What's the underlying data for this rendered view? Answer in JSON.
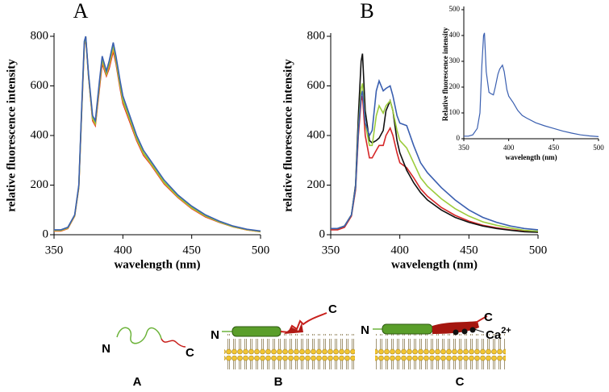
{
  "chart_data": [
    {
      "type": "line",
      "title": "A",
      "xlabel": "wavelength (nm)",
      "ylabel": "relative fluorescence intensity",
      "x": [
        350,
        355,
        360,
        365,
        368,
        370,
        372,
        373,
        375,
        378,
        380,
        383,
        385,
        388,
        390,
        393,
        395,
        398,
        400,
        405,
        410,
        415,
        420,
        430,
        440,
        450,
        460,
        470,
        480,
        490,
        500
      ],
      "xlim": [
        350,
        500
      ],
      "xticks": [
        350,
        400,
        450,
        500
      ],
      "ylim": [
        0,
        800
      ],
      "yticks": [
        0,
        200,
        400,
        600,
        800
      ],
      "series": [
        {
          "color": "#d62728",
          "values": [
            15,
            15,
            25,
            75,
            190,
            480,
            760,
            795,
            640,
            460,
            440,
            590,
            690,
            640,
            670,
            740,
            690,
            590,
            530,
            455,
            380,
            320,
            285,
            205,
            150,
            105,
            72,
            50,
            32,
            20,
            12
          ]
        },
        {
          "color": "#f0a020",
          "values": [
            16,
            16,
            26,
            76,
            192,
            485,
            765,
            796,
            642,
            465,
            445,
            600,
            700,
            645,
            680,
            750,
            700,
            598,
            538,
            462,
            385,
            325,
            288,
            208,
            152,
            107,
            74,
            51,
            32,
            20,
            12
          ]
        },
        {
          "color": "#8cc63f",
          "values": [
            18,
            18,
            28,
            78,
            195,
            490,
            770,
            798,
            645,
            470,
            450,
            610,
            710,
            650,
            690,
            765,
            705,
            605,
            545,
            468,
            390,
            330,
            292,
            212,
            155,
            110,
            76,
            52,
            33,
            21,
            13
          ]
        },
        {
          "color": "#3a5fb0",
          "values": [
            20,
            20,
            30,
            80,
            200,
            500,
            780,
            800,
            650,
            480,
            460,
            620,
            720,
            660,
            700,
            775,
            720,
            620,
            560,
            480,
            400,
            340,
            300,
            220,
            160,
            115,
            80,
            55,
            35,
            22,
            15
          ]
        }
      ]
    },
    {
      "type": "line",
      "title": "B",
      "xlabel": "wavelength (nm)",
      "ylabel": "relative fluorescence intensity",
      "x": [
        350,
        355,
        360,
        365,
        368,
        370,
        372,
        373,
        375,
        378,
        380,
        383,
        385,
        388,
        390,
        393,
        395,
        398,
        400,
        405,
        410,
        415,
        420,
        430,
        440,
        450,
        460,
        470,
        480,
        490,
        500
      ],
      "xlim": [
        350,
        500
      ],
      "xticks": [
        350,
        400,
        450,
        500
      ],
      "ylim": [
        0,
        800
      ],
      "yticks": [
        0,
        200,
        400,
        600,
        800
      ],
      "series": [
        {
          "color": "#d62728",
          "values": [
            20,
            20,
            30,
            75,
            180,
            400,
            540,
            560,
            400,
            310,
            310,
            340,
            360,
            360,
            400,
            430,
            400,
            330,
            290,
            270,
            230,
            185,
            155,
            110,
            78,
            55,
            38,
            28,
            20,
            14,
            10
          ]
        },
        {
          "color": "#111111",
          "values": [
            25,
            25,
            35,
            80,
            200,
            480,
            700,
            730,
            500,
            380,
            370,
            380,
            390,
            420,
            500,
            540,
            500,
            380,
            330,
            260,
            210,
            170,
            140,
            100,
            70,
            50,
            35,
            25,
            18,
            12,
            10
          ]
        },
        {
          "color": "#9ccc3c",
          "values": [
            25,
            25,
            35,
            80,
            190,
            430,
            590,
            610,
            450,
            360,
            360,
            480,
            520,
            490,
            520,
            540,
            500,
            420,
            380,
            350,
            290,
            230,
            195,
            145,
            105,
            75,
            52,
            38,
            27,
            18,
            14
          ]
        },
        {
          "color": "#3a5fb0",
          "values": [
            25,
            25,
            35,
            80,
            190,
            420,
            560,
            580,
            450,
            400,
            420,
            580,
            620,
            580,
            590,
            600,
            560,
            480,
            450,
            440,
            360,
            290,
            250,
            190,
            140,
            100,
            70,
            50,
            35,
            25,
            20
          ]
        }
      ]
    },
    {
      "type": "line",
      "xlabel": "wavelength (nm)",
      "ylabel": "Relative fluorescence intensity",
      "x": [
        350,
        355,
        360,
        365,
        368,
        370,
        372,
        373,
        375,
        378,
        380,
        383,
        385,
        388,
        390,
        393,
        395,
        398,
        400,
        405,
        410,
        415,
        420,
        430,
        440,
        450,
        460,
        470,
        480,
        490,
        500
      ],
      "xlim": [
        350,
        500
      ],
      "xticks": [
        350,
        400,
        450,
        500
      ],
      "ylim": [
        0,
        500
      ],
      "yticks": [
        0,
        100,
        200,
        300,
        400,
        500
      ],
      "series": [
        {
          "color": "#3a5fb0",
          "values": [
            10,
            10,
            15,
            40,
            100,
            280,
            400,
            410,
            260,
            180,
            175,
            170,
            200,
            250,
            270,
            285,
            260,
            190,
            165,
            140,
            110,
            90,
            80,
            62,
            50,
            40,
            30,
            22,
            15,
            11,
            8
          ]
        }
      ]
    }
  ],
  "diagram": {
    "panels": [
      {
        "label": "A",
        "n": "N",
        "c": "C"
      },
      {
        "label": "B",
        "n": "N",
        "c": "C"
      },
      {
        "label": "C",
        "n": "N",
        "c": "C",
        "ion": {
          "base": "Ca",
          "charge": "2+"
        }
      }
    ]
  }
}
